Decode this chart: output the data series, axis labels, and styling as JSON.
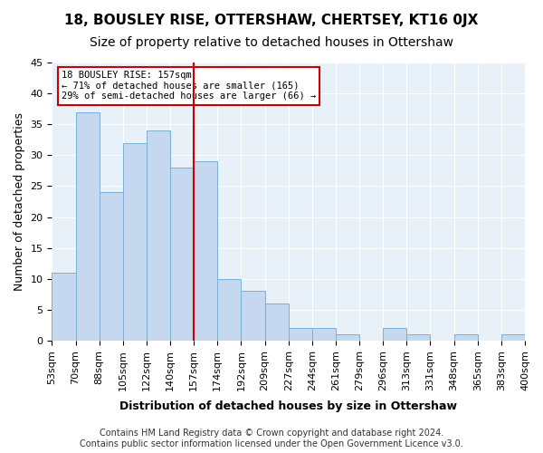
{
  "title1": "18, BOUSLEY RISE, OTTERSHAW, CHERTSEY, KT16 0JX",
  "title2": "Size of property relative to detached houses in Ottershaw",
  "xlabel": "Distribution of detached houses by size in Ottershaw",
  "ylabel": "Number of detached properties",
  "bin_labels": [
    "53sqm",
    "70sqm",
    "88sqm",
    "105sqm",
    "122sqm",
    "140sqm",
    "157sqm",
    "174sqm",
    "192sqm",
    "209sqm",
    "227sqm",
    "244sqm",
    "261sqm",
    "279sqm",
    "296sqm",
    "313sqm",
    "331sqm",
    "348sqm",
    "365sqm",
    "383sqm",
    "400sqm"
  ],
  "bar_heights": [
    11,
    37,
    24,
    32,
    34,
    28,
    29,
    10,
    8,
    6,
    2,
    2,
    1,
    0,
    2,
    1,
    0,
    1,
    0,
    1
  ],
  "bar_color": "#c5d8f0",
  "bar_edge_color": "#7bafd4",
  "highlight_index": 6,
  "highlight_line_color": "#cc0000",
  "annotation_text": "18 BOUSLEY RISE: 157sqm\n← 71% of detached houses are smaller (165)\n29% of semi-detached houses are larger (66) →",
  "annotation_box_color": "#ffffff",
  "annotation_box_edge_color": "#cc0000",
  "ylim": [
    0,
    45
  ],
  "yticks": [
    0,
    5,
    10,
    15,
    20,
    25,
    30,
    35,
    40,
    45
  ],
  "background_color": "#e8f0f8",
  "grid_color": "#ffffff",
  "footer_text": "Contains HM Land Registry data © Crown copyright and database right 2024.\nContains public sector information licensed under the Open Government Licence v3.0.",
  "title1_fontsize": 11,
  "title2_fontsize": 10,
  "xlabel_fontsize": 9,
  "ylabel_fontsize": 9,
  "tick_fontsize": 8,
  "footer_fontsize": 7
}
